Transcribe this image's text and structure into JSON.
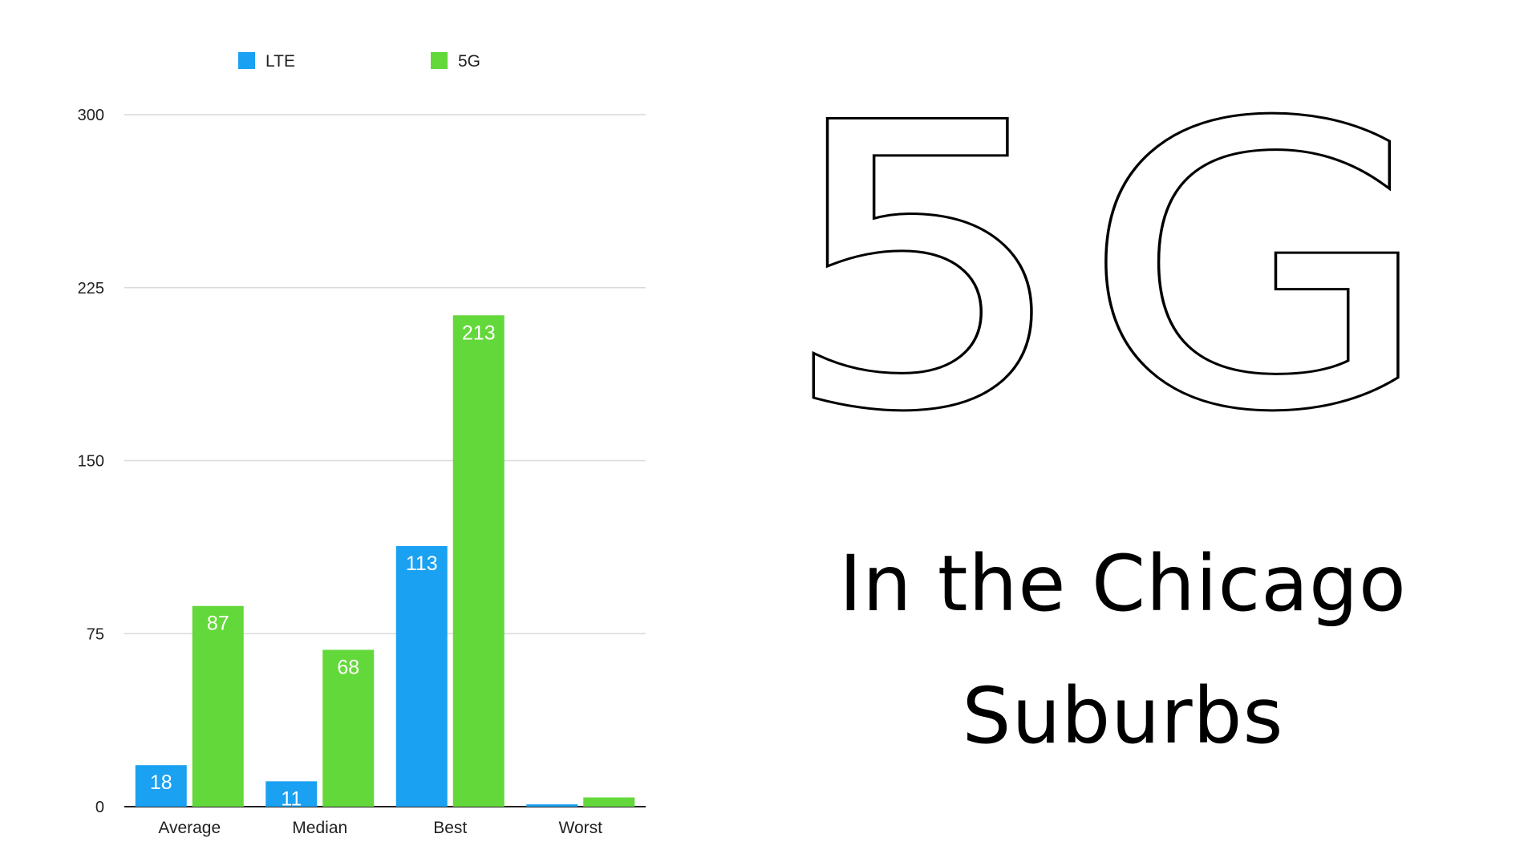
{
  "chart_data": {
    "type": "bar",
    "categories": [
      "Average",
      "Median",
      "Best",
      "Worst"
    ],
    "series": [
      {
        "name": "LTE",
        "values": [
          18,
          11,
          113,
          1
        ],
        "labels": [
          "18",
          "11",
          "113",
          ""
        ],
        "color": "#1aa1f2"
      },
      {
        "name": "5G",
        "values": [
          87,
          68,
          213,
          4
        ],
        "labels": [
          "87",
          "68",
          "213",
          ""
        ],
        "color": "#63d83a"
      }
    ],
    "y_ticks": [
      "0",
      "75",
      "150",
      "225",
      "300"
    ],
    "ylim": [
      0,
      300
    ],
    "grid": true,
    "legend_position": "top"
  },
  "headline": {
    "big": "5G",
    "line1": "In the Chicago",
    "line2": "Suburbs"
  }
}
